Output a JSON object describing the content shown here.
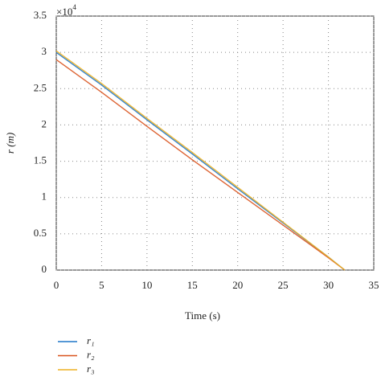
{
  "chart_data": {
    "type": "line",
    "x_label": "Time (s)",
    "y_label": "r (m)",
    "y_multiplier": {
      "base": "×10",
      "exponent": "4"
    },
    "x": [
      0,
      5,
      10,
      15,
      20,
      25,
      30,
      31.8
    ],
    "series": [
      {
        "name": "r₁",
        "color": "#1f77c8",
        "values": [
          3.0,
          2.55,
          2.07,
          1.6,
          1.12,
          0.65,
          0.18,
          0
        ]
      },
      {
        "name": "r₂",
        "color": "#d9531e",
        "values": [
          2.9,
          2.45,
          1.98,
          1.52,
          1.07,
          0.62,
          0.17,
          0
        ]
      },
      {
        "name": "r₃",
        "color": "#edb120",
        "values": [
          3.02,
          2.57,
          2.09,
          1.62,
          1.14,
          0.66,
          0.18,
          0
        ]
      }
    ],
    "xlim": [
      0,
      35
    ],
    "xticks": [
      0,
      5,
      10,
      15,
      20,
      25,
      30,
      35
    ],
    "ylim": [
      0,
      3.5
    ],
    "yticks": [
      0,
      0.5,
      1,
      1.5,
      2,
      2.5,
      3,
      3.5
    ],
    "grid": true
  }
}
